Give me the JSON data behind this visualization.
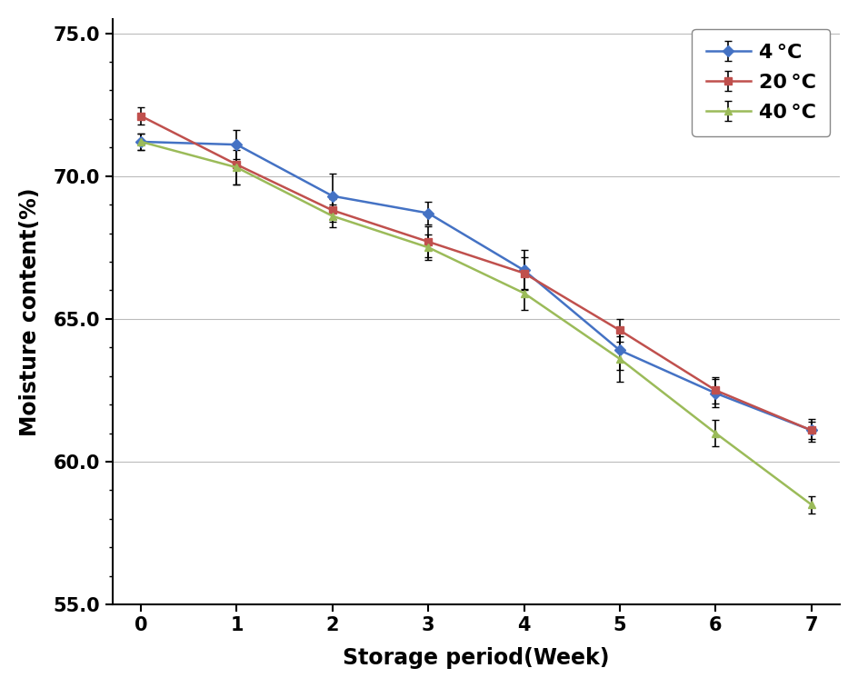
{
  "x": [
    0,
    1,
    2,
    3,
    4,
    5,
    6,
    7
  ],
  "series": [
    {
      "label": "4 °C",
      "color": "#4472C4",
      "marker": "D",
      "values": [
        71.2,
        71.1,
        69.3,
        68.7,
        66.7,
        63.9,
        62.4,
        61.1
      ],
      "yerr": [
        0.3,
        0.5,
        0.8,
        0.4,
        0.7,
        0.7,
        0.5,
        0.4
      ]
    },
    {
      "label": "20 °C",
      "color": "#C0504D",
      "marker": "s",
      "values": [
        72.1,
        70.4,
        68.8,
        67.7,
        66.6,
        64.6,
        62.5,
        61.1
      ],
      "yerr": [
        0.3,
        0.7,
        0.4,
        0.55,
        0.55,
        0.4,
        0.45,
        0.3
      ]
    },
    {
      "label": "40 °C",
      "color": "#9BBB59",
      "marker": "^",
      "values": [
        71.2,
        70.3,
        68.6,
        67.5,
        65.9,
        63.6,
        61.0,
        58.5
      ],
      "yerr": [
        0.3,
        0.6,
        0.4,
        0.45,
        0.6,
        0.8,
        0.45,
        0.3
      ]
    }
  ],
  "xlabel": "Storage period(Week)",
  "ylabel": "Moisture content(%)",
  "xlim": [
    -0.3,
    7.3
  ],
  "ylim": [
    55.0,
    75.5
  ],
  "yticks_major": [
    55.0,
    60.0,
    65.0,
    70.0,
    75.0
  ],
  "ytick_labels": [
    "55.0",
    "60.0",
    "65.0",
    "70.0",
    "75.0"
  ],
  "yticks_minor_step": 1.0,
  "xticks": [
    0,
    1,
    2,
    3,
    4,
    5,
    6,
    7
  ],
  "grid_color": "#BBBBBB",
  "background_color": "#FFFFFF",
  "legend_loc": "upper right",
  "markersize": 6,
  "linewidth": 1.8,
  "capsize": 3,
  "elinewidth": 1.2
}
